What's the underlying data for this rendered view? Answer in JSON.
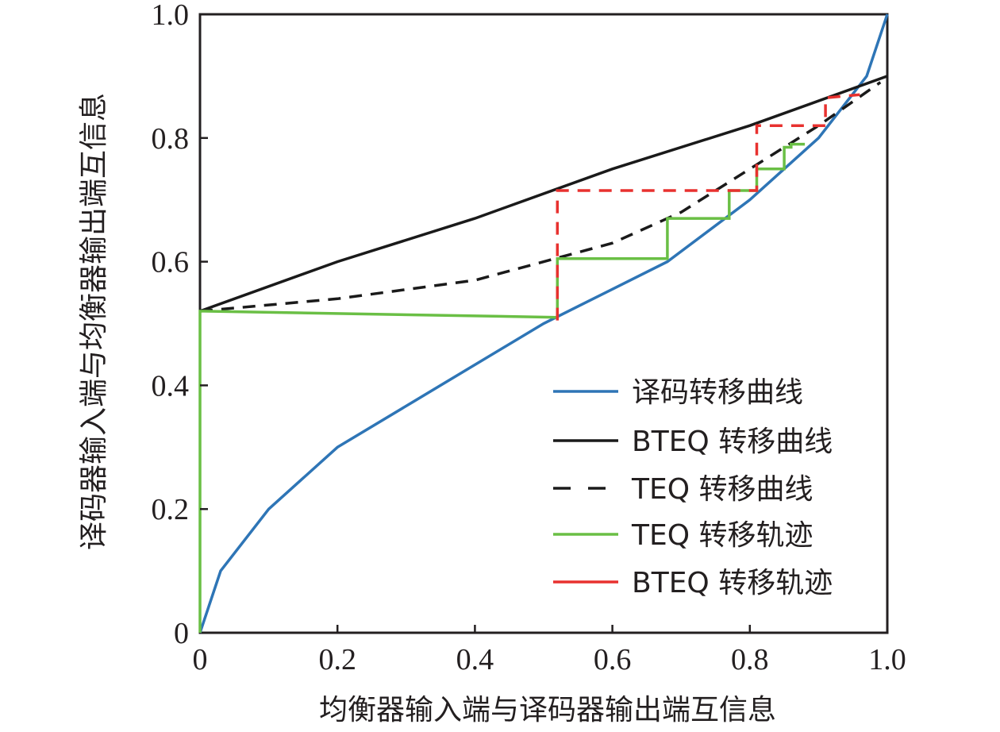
{
  "chart_data": {
    "type": "line",
    "title": "",
    "xlabel": "均衡器输入端与译码器输出端互信息",
    "ylabel": "译码器输入端与均衡器输出端互信息",
    "xlim": [
      0,
      1.0
    ],
    "ylim": [
      0,
      1.0
    ],
    "x_ticks": [
      "0",
      "0.2",
      "0.4",
      "0.6",
      "0.8",
      "1.0"
    ],
    "y_ticks": [
      "0",
      "0.2",
      "0.4",
      "0.6",
      "0.8",
      "1.0"
    ],
    "grid": false,
    "legend_position": "bottom-right",
    "series": [
      {
        "name": "译码转移曲线",
        "color": "#2e75b6",
        "style": "solid",
        "x": [
          0,
          0.03,
          0.1,
          0.2,
          0.35,
          0.5,
          0.68,
          0.8,
          0.9,
          0.97,
          1.0
        ],
        "y": [
          0,
          0.1,
          0.2,
          0.3,
          0.4,
          0.5,
          0.6,
          0.7,
          0.8,
          0.9,
          1.0
        ]
      },
      {
        "name": "BTEQ 转移曲线",
        "color": "#1a1a1a",
        "style": "solid",
        "x": [
          0,
          0.2,
          0.4,
          0.6,
          0.8,
          1.0
        ],
        "y": [
          0.52,
          0.6,
          0.67,
          0.75,
          0.82,
          0.9
        ]
      },
      {
        "name": "TEQ 转移曲线",
        "color": "#1a1a1a",
        "style": "dashed",
        "x": [
          0,
          0.2,
          0.4,
          0.6,
          0.7,
          0.8,
          0.9,
          0.99
        ],
        "y": [
          0.52,
          0.54,
          0.57,
          0.63,
          0.68,
          0.75,
          0.82,
          0.89
        ]
      },
      {
        "name": "TEQ 转移轨迹",
        "color": "#6abf45",
        "style": "solid",
        "x": [
          0,
          0,
          0.52,
          0.52,
          0.68,
          0.68,
          0.77,
          0.77,
          0.81,
          0.81,
          0.85,
          0.85,
          0.86,
          0.86,
          0.88
        ],
        "y": [
          0,
          0.52,
          0.51,
          0.605,
          0.605,
          0.67,
          0.67,
          0.715,
          0.715,
          0.75,
          0.75,
          0.785,
          0.785,
          0.79,
          0.79
        ]
      },
      {
        "name": "BTEQ 转移轨迹",
        "color": "#e8312f",
        "style": "dashed",
        "x": [
          0.52,
          0.52,
          0.81,
          0.81,
          0.91,
          0.91,
          0.96
        ],
        "y": [
          0.505,
          0.715,
          0.715,
          0.82,
          0.82,
          0.865,
          0.87
        ]
      }
    ]
  }
}
